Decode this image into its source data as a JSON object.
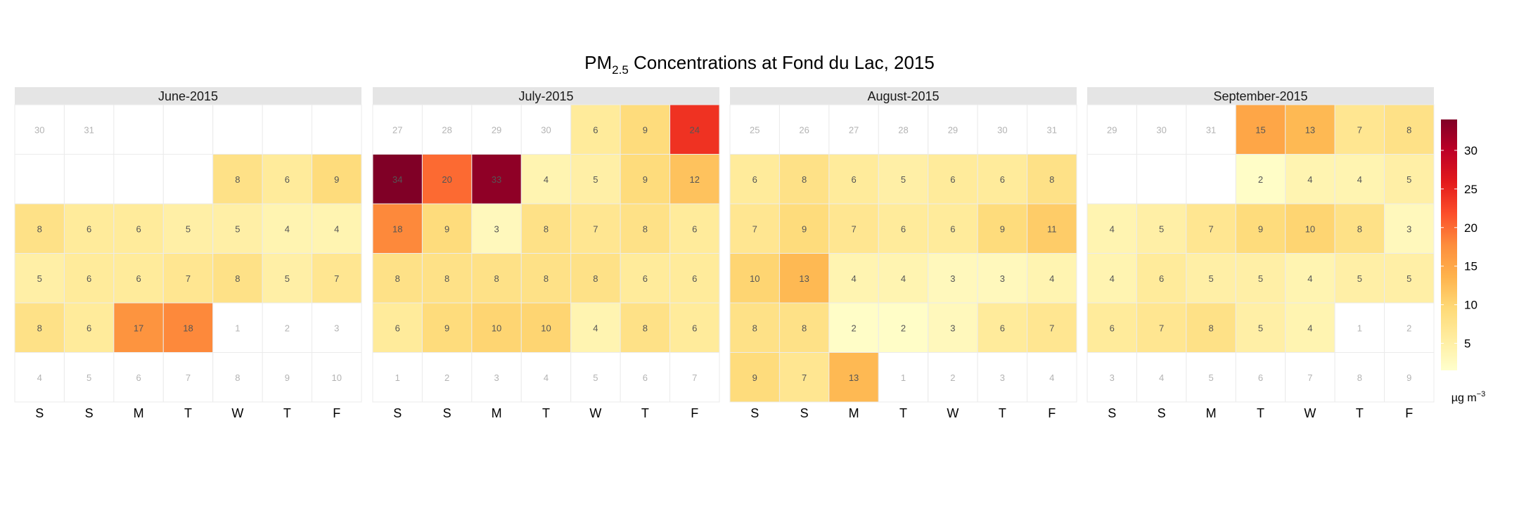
{
  "chart_data": {
    "type": "heatmap",
    "title_main": "PM",
    "title_sub": "2.5",
    "title_rest": " Concentrations at Fond du Lac, 2015",
    "weekday_labels": [
      "S",
      "S",
      "M",
      "T",
      "W",
      "T",
      "F"
    ],
    "legend": {
      "unit_main": "µg m",
      "unit_sup": "−3",
      "ticks": [
        5,
        10,
        15,
        20,
        25,
        30
      ],
      "range": [
        1.5,
        34
      ],
      "colors": [
        "#ffffcc",
        "#ffeda0",
        "#fed976",
        "#feb24c",
        "#fd8d3c",
        "#fc4e2a",
        "#e31a1c",
        "#bd0026",
        "#800026"
      ]
    },
    "months": [
      {
        "name": "June-2015",
        "rows": [
          [
            {
              "d": "30",
              "v": null
            },
            {
              "d": "31",
              "v": null
            },
            {
              "d": "",
              "v": null
            },
            {
              "d": "",
              "v": null
            },
            {
              "d": "",
              "v": null
            },
            {
              "d": "",
              "v": null
            },
            {
              "d": "",
              "v": null
            }
          ],
          [
            {
              "d": "",
              "v": null
            },
            {
              "d": "",
              "v": null
            },
            {
              "d": "",
              "v": null
            },
            {
              "d": "",
              "v": null
            },
            {
              "d": "8",
              "v": 8
            },
            {
              "d": "6",
              "v": 6
            },
            {
              "d": "9",
              "v": 9
            }
          ],
          [
            {
              "d": "8",
              "v": 8
            },
            {
              "d": "6",
              "v": 6
            },
            {
              "d": "6",
              "v": 6
            },
            {
              "d": "5",
              "v": 5
            },
            {
              "d": "5",
              "v": 5
            },
            {
              "d": "4",
              "v": 4
            },
            {
              "d": "4",
              "v": 4
            }
          ],
          [
            {
              "d": "5",
              "v": 5
            },
            {
              "d": "6",
              "v": 6
            },
            {
              "d": "6",
              "v": 6
            },
            {
              "d": "7",
              "v": 7
            },
            {
              "d": "8",
              "v": 8
            },
            {
              "d": "5",
              "v": 5
            },
            {
              "d": "7",
              "v": 7
            }
          ],
          [
            {
              "d": "8",
              "v": 8
            },
            {
              "d": "6",
              "v": 6
            },
            {
              "d": "17",
              "v": 17
            },
            {
              "d": "18",
              "v": 18
            },
            {
              "d": "1",
              "v": null
            },
            {
              "d": "2",
              "v": null
            },
            {
              "d": "3",
              "v": null
            }
          ],
          [
            {
              "d": "4",
              "v": null
            },
            {
              "d": "5",
              "v": null
            },
            {
              "d": "6",
              "v": null
            },
            {
              "d": "7",
              "v": null
            },
            {
              "d": "8",
              "v": null
            },
            {
              "d": "9",
              "v": null
            },
            {
              "d": "10",
              "v": null
            }
          ]
        ]
      },
      {
        "name": "July-2015",
        "rows": [
          [
            {
              "d": "27",
              "v": null
            },
            {
              "d": "28",
              "v": null
            },
            {
              "d": "29",
              "v": null
            },
            {
              "d": "30",
              "v": null
            },
            {
              "d": "6",
              "v": 6
            },
            {
              "d": "9",
              "v": 9
            },
            {
              "d": "24",
              "v": 24
            }
          ],
          [
            {
              "d": "34",
              "v": 34
            },
            {
              "d": "20",
              "v": 20
            },
            {
              "d": "33",
              "v": 33
            },
            {
              "d": "4",
              "v": 4
            },
            {
              "d": "5",
              "v": 5
            },
            {
              "d": "9",
              "v": 9
            },
            {
              "d": "12",
              "v": 12
            }
          ],
          [
            {
              "d": "18",
              "v": 18
            },
            {
              "d": "9",
              "v": 9
            },
            {
              "d": "3",
              "v": 3
            },
            {
              "d": "8",
              "v": 8
            },
            {
              "d": "7",
              "v": 7
            },
            {
              "d": "8",
              "v": 8
            },
            {
              "d": "6",
              "v": 6
            }
          ],
          [
            {
              "d": "8",
              "v": 8
            },
            {
              "d": "8",
              "v": 8
            },
            {
              "d": "8",
              "v": 8
            },
            {
              "d": "8",
              "v": 8
            },
            {
              "d": "8",
              "v": 8
            },
            {
              "d": "6",
              "v": 6
            },
            {
              "d": "6",
              "v": 6
            }
          ],
          [
            {
              "d": "6",
              "v": 6
            },
            {
              "d": "9",
              "v": 9
            },
            {
              "d": "10",
              "v": 10
            },
            {
              "d": "10",
              "v": 10
            },
            {
              "d": "4",
              "v": 4
            },
            {
              "d": "8",
              "v": 8
            },
            {
              "d": "6",
              "v": 6
            }
          ],
          [
            {
              "d": "1",
              "v": null
            },
            {
              "d": "2",
              "v": null
            },
            {
              "d": "3",
              "v": null
            },
            {
              "d": "4",
              "v": null
            },
            {
              "d": "5",
              "v": null
            },
            {
              "d": "6",
              "v": null
            },
            {
              "d": "7",
              "v": null
            }
          ]
        ]
      },
      {
        "name": "August-2015",
        "rows": [
          [
            {
              "d": "25",
              "v": null
            },
            {
              "d": "26",
              "v": null
            },
            {
              "d": "27",
              "v": null
            },
            {
              "d": "28",
              "v": null
            },
            {
              "d": "29",
              "v": null
            },
            {
              "d": "30",
              "v": null
            },
            {
              "d": "31",
              "v": null
            }
          ],
          [
            {
              "d": "6",
              "v": 6
            },
            {
              "d": "8",
              "v": 8
            },
            {
              "d": "6",
              "v": 6
            },
            {
              "d": "5",
              "v": 5
            },
            {
              "d": "6",
              "v": 6
            },
            {
              "d": "6",
              "v": 6
            },
            {
              "d": "8",
              "v": 8
            }
          ],
          [
            {
              "d": "7",
              "v": 7
            },
            {
              "d": "9",
              "v": 9
            },
            {
              "d": "7",
              "v": 7
            },
            {
              "d": "6",
              "v": 6
            },
            {
              "d": "6",
              "v": 6
            },
            {
              "d": "9",
              "v": 9
            },
            {
              "d": "11",
              "v": 11
            }
          ],
          [
            {
              "d": "10",
              "v": 10
            },
            {
              "d": "13",
              "v": 13
            },
            {
              "d": "4",
              "v": 4
            },
            {
              "d": "4",
              "v": 4
            },
            {
              "d": "3",
              "v": 3
            },
            {
              "d": "3",
              "v": 3
            },
            {
              "d": "4",
              "v": 4
            }
          ],
          [
            {
              "d": "8",
              "v": 8
            },
            {
              "d": "8",
              "v": 8
            },
            {
              "d": "2",
              "v": 2
            },
            {
              "d": "2",
              "v": 2
            },
            {
              "d": "3",
              "v": 3
            },
            {
              "d": "6",
              "v": 6
            },
            {
              "d": "7",
              "v": 7
            }
          ],
          [
            {
              "d": "9",
              "v": 9
            },
            {
              "d": "7",
              "v": 7
            },
            {
              "d": "13",
              "v": 13
            },
            {
              "d": "1",
              "v": null
            },
            {
              "d": "2",
              "v": null
            },
            {
              "d": "3",
              "v": null
            },
            {
              "d": "4",
              "v": null
            }
          ]
        ]
      },
      {
        "name": "September-2015",
        "rows": [
          [
            {
              "d": "29",
              "v": null
            },
            {
              "d": "30",
              "v": null
            },
            {
              "d": "31",
              "v": null
            },
            {
              "d": "15",
              "v": 15
            },
            {
              "d": "13",
              "v": 13
            },
            {
              "d": "7",
              "v": 7
            },
            {
              "d": "8",
              "v": 8
            }
          ],
          [
            {
              "d": "",
              "v": null
            },
            {
              "d": "",
              "v": null
            },
            {
              "d": "",
              "v": null
            },
            {
              "d": "2",
              "v": 2
            },
            {
              "d": "4",
              "v": 4
            },
            {
              "d": "4",
              "v": 4
            },
            {
              "d": "5",
              "v": 5
            }
          ],
          [
            {
              "d": "4",
              "v": 4
            },
            {
              "d": "5",
              "v": 5
            },
            {
              "d": "7",
              "v": 7
            },
            {
              "d": "9",
              "v": 9
            },
            {
              "d": "10",
              "v": 10
            },
            {
              "d": "8",
              "v": 8
            },
            {
              "d": "3",
              "v": 3
            }
          ],
          [
            {
              "d": "4",
              "v": 4
            },
            {
              "d": "6",
              "v": 6
            },
            {
              "d": "5",
              "v": 5
            },
            {
              "d": "5",
              "v": 5
            },
            {
              "d": "4",
              "v": 4
            },
            {
              "d": "5",
              "v": 5
            },
            {
              "d": "5",
              "v": 5
            }
          ],
          [
            {
              "d": "6",
              "v": 6
            },
            {
              "d": "7",
              "v": 7
            },
            {
              "d": "8",
              "v": 8
            },
            {
              "d": "5",
              "v": 5
            },
            {
              "d": "4",
              "v": 4
            },
            {
              "d": "1",
              "v": null
            },
            {
              "d": "2",
              "v": null
            }
          ],
          [
            {
              "d": "3",
              "v": null
            },
            {
              "d": "4",
              "v": null
            },
            {
              "d": "5",
              "v": null
            },
            {
              "d": "6",
              "v": null
            },
            {
              "d": "7",
              "v": null
            },
            {
              "d": "8",
              "v": null
            },
            {
              "d": "9",
              "v": null
            }
          ]
        ]
      }
    ]
  }
}
